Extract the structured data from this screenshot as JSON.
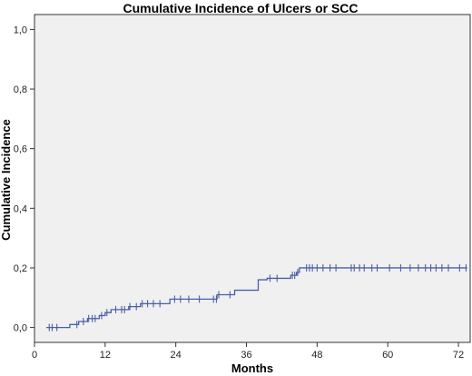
{
  "chart_data": {
    "type": "line",
    "title": "Cumulative Incidence of Ulcers or SCC",
    "xlabel": "Months",
    "ylabel": "Cumulative Incidence",
    "xlim": [
      0,
      74
    ],
    "ylim": [
      -0.05,
      1.05
    ],
    "x_ticks": [
      0,
      12,
      24,
      36,
      48,
      60,
      72
    ],
    "x_tick_labels": [
      "0",
      "12",
      "24",
      "36",
      "48",
      "60",
      "72"
    ],
    "y_ticks": [
      0.0,
      0.2,
      0.4,
      0.6,
      0.8,
      1.0
    ],
    "y_tick_labels": [
      "0,0",
      "0,2",
      "0,4",
      "0,6",
      "0,8",
      "1,0"
    ],
    "grid": false,
    "colors": {
      "plot_background": "#f0f0f0",
      "line": "#4a5fa5",
      "axis": "#333333"
    },
    "series": [
      {
        "step_x": [
          2,
          6,
          7.5,
          9,
          11,
          12,
          13,
          16,
          18,
          23,
          31,
          34,
          38,
          39.5,
          43.5,
          44.5,
          45,
          73.5
        ],
        "step_y": [
          0,
          0.01,
          0.02,
          0.03,
          0.04,
          0.05,
          0.06,
          0.07,
          0.08,
          0.095,
          0.11,
          0.125,
          0.16,
          0.165,
          0.175,
          0.185,
          0.2,
          0.2
        ],
        "censor_x": [
          2.5,
          3,
          3.8,
          7.2,
          8.3,
          9.2,
          9.8,
          10.3,
          11.4,
          12.3,
          13.8,
          14.8,
          15.3,
          16.2,
          17.3,
          18.3,
          19.2,
          20.2,
          21.3,
          23.8,
          24.8,
          26.2,
          28,
          30.4,
          30.9,
          31.3,
          33.2,
          40,
          41.2,
          43.8,
          44.2,
          44.7,
          46.2,
          46.7,
          47.2,
          48,
          49,
          50.2,
          51.2,
          53.8,
          54.3,
          55.2,
          56,
          57.3,
          58.2,
          60.3,
          62.2,
          63.8,
          65.2,
          66.4,
          67.3,
          68.2,
          69.2,
          70.3,
          72.2,
          73.3
        ]
      }
    ]
  }
}
